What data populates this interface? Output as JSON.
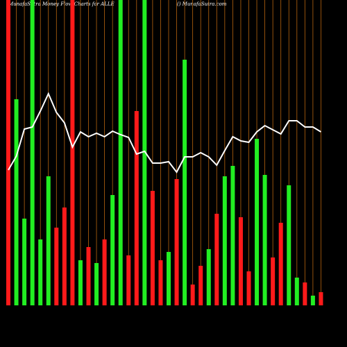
{
  "chart_data": {
    "type": "bar",
    "title": "MunafaSutra  Money Flow  Charts for ALLE",
    "subtitle": "() MunafaSutra.com",
    "ylim": [
      0,
      440
    ],
    "grid": true,
    "grid_color": "#b8650f",
    "categories": [
      null,
      null,
      null,
      null,
      null,
      null,
      null,
      null,
      null,
      null,
      null,
      null,
      null,
      null,
      null,
      null,
      null,
      null,
      null,
      null,
      null,
      null,
      null,
      null,
      null,
      null,
      null,
      null,
      null,
      null,
      null,
      null,
      null,
      null,
      null,
      null,
      null,
      null,
      null,
      null
    ],
    "values": [
      440,
      297,
      125,
      440,
      95,
      186,
      112,
      141,
      440,
      65,
      84,
      61,
      95,
      159,
      440,
      72,
      280,
      440,
      165,
      65,
      77,
      182,
      354,
      30,
      57,
      81,
      132,
      186,
      201,
      127,
      49,
      240,
      188,
      69,
      119,
      173,
      40,
      33,
      14,
      19
    ],
    "colors": [
      "#ff1a1a",
      "#22ee22",
      "#22ee22",
      "#22ee22",
      "#22ee22",
      "#22ee22",
      "#ff1a1a",
      "#ff1a1a",
      "#ff1a1a",
      "#22ee22",
      "#ff1a1a",
      "#22ee22",
      "#ff1a1a",
      "#22ee22",
      "#22ee22",
      "#ff1a1a",
      "#ff1a1a",
      "#22ee22",
      "#ff1a1a",
      "#ff1a1a",
      "#22ee22",
      "#ff1a1a",
      "#22ee22",
      "#ff1a1a",
      "#ff1a1a",
      "#22ee22",
      "#ff1a1a",
      "#22ee22",
      "#22ee22",
      "#ff1a1a",
      "#ff1a1a",
      "#22ee22",
      "#22ee22",
      "#ff1a1a",
      "#ff1a1a",
      "#22ee22",
      "#22ee22",
      "#ff1a1a",
      "#22ee22",
      "#ff1a1a"
    ],
    "line": {
      "color": "#ffffff",
      "values": [
        195,
        215,
        254,
        257,
        280,
        305,
        278,
        263,
        228,
        250,
        243,
        248,
        243,
        251,
        246,
        242,
        218,
        222,
        205,
        205,
        207,
        192,
        214,
        214,
        220,
        214,
        202,
        223,
        243,
        237,
        235,
        250,
        259,
        253,
        247,
        266,
        266,
        257,
        257,
        250
      ]
    }
  }
}
